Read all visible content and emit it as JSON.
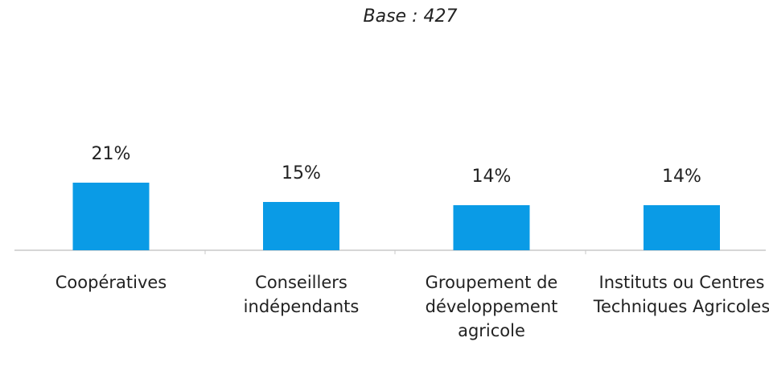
{
  "chart_data": {
    "type": "bar",
    "subtitle": "Base : 427",
    "categories": [
      "Coopératives",
      "Conseillers indépendants",
      "Groupement de développement agricole",
      "Instituts ou Centres Techniques Agricoles"
    ],
    "values": [
      21,
      15,
      14,
      14
    ],
    "value_labels": [
      "21%",
      "15%",
      "14%",
      "14%"
    ],
    "color": "#0a9be6"
  }
}
